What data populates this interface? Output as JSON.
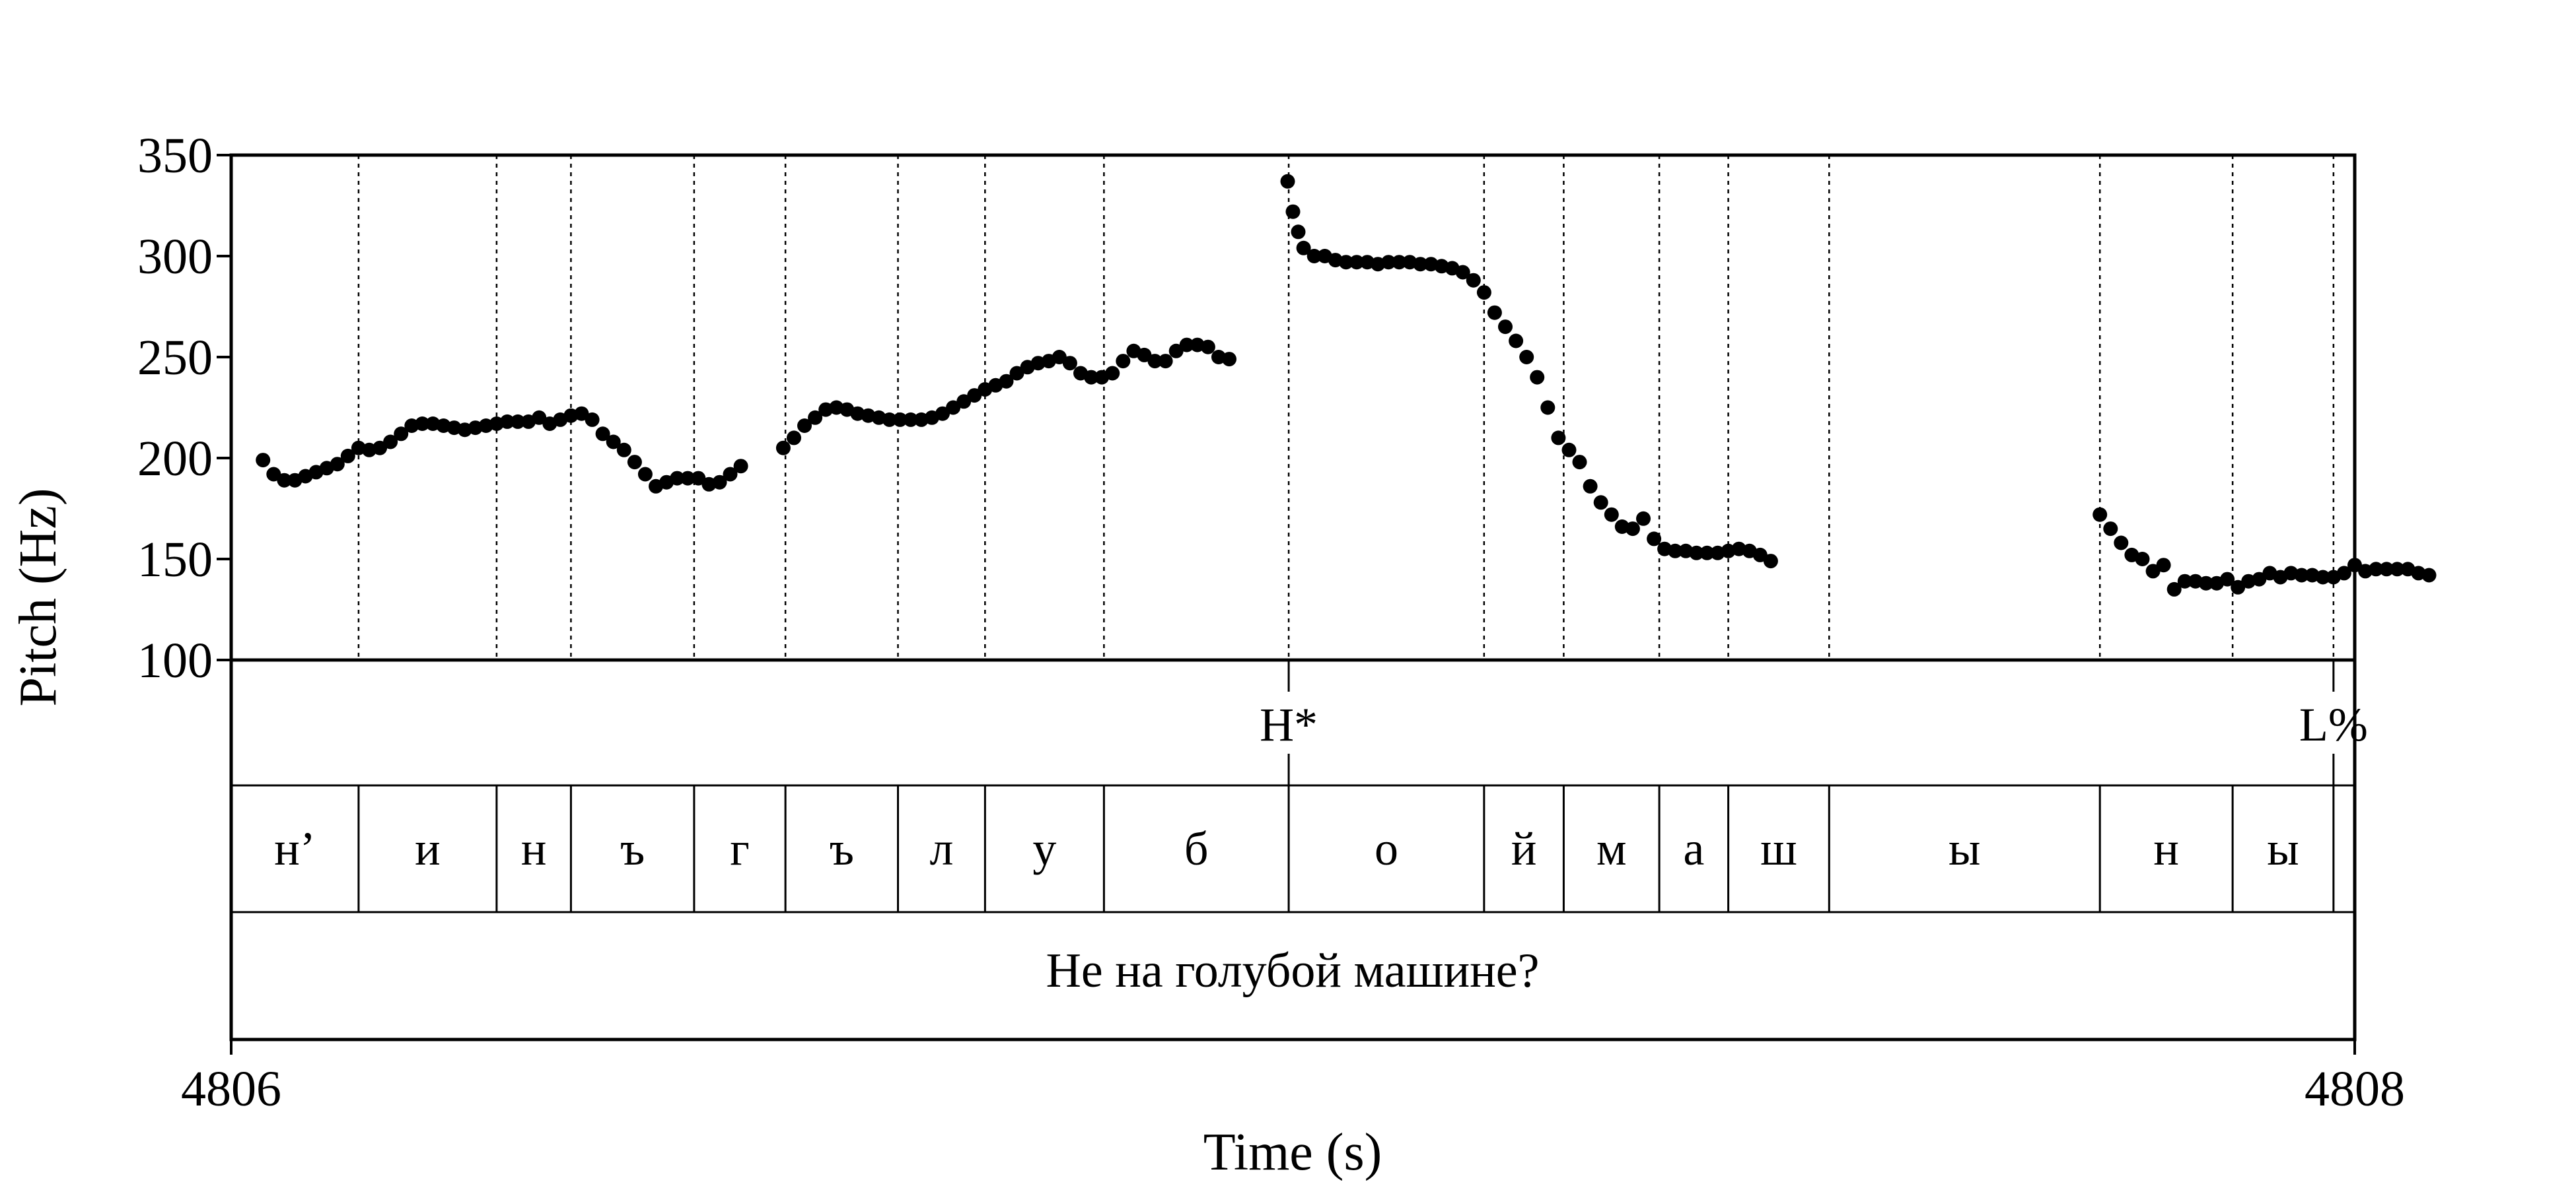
{
  "chart_data": {
    "type": "scatter",
    "xlabel": "Time (s)",
    "ylabel": "Pitch (Hz)",
    "xlim": [
      4806,
      4808
    ],
    "ylim": [
      100,
      350
    ],
    "x_ticks": [
      "4806",
      "4808"
    ],
    "y_ticks": [
      "100",
      "150",
      "200",
      "250",
      "300",
      "350"
    ],
    "marker_color": "#000000",
    "segment_boundaries": [
      4806.12,
      4806.25,
      4806.32,
      4806.436,
      4806.522,
      4806.628,
      4806.71,
      4806.822,
      4806.996,
      4807.18,
      4807.255,
      4807.345,
      4807.41,
      4807.505,
      4807.76,
      4807.885,
      4807.98
    ],
    "tones": [
      {
        "label": "H*",
        "time": 4806.996
      },
      {
        "label": "L%",
        "time": 4807.98
      }
    ],
    "segments": [
      "н’",
      "и",
      "н",
      "ъ",
      "г",
      "ъ",
      "л",
      "у",
      "б",
      "о",
      "й",
      "м",
      "а",
      "ш",
      "ы",
      "н",
      "ы"
    ],
    "sentence": "Не на голубой машине?",
    "series": [
      {
        "points": [
          [
            4806.03,
            199
          ],
          [
            4806.04,
            192
          ],
          [
            4806.05,
            189
          ],
          [
            4806.06,
            189
          ],
          [
            4806.07,
            191
          ],
          [
            4806.08,
            193
          ],
          [
            4806.09,
            195
          ],
          [
            4806.1,
            197
          ],
          [
            4806.11,
            201
          ],
          [
            4806.12,
            205
          ],
          [
            4806.13,
            204
          ],
          [
            4806.14,
            205
          ],
          [
            4806.15,
            208
          ],
          [
            4806.16,
            212
          ],
          [
            4806.17,
            216
          ],
          [
            4806.18,
            217
          ],
          [
            4806.19,
            217
          ],
          [
            4806.2,
            216
          ],
          [
            4806.21,
            215
          ],
          [
            4806.22,
            214
          ],
          [
            4806.23,
            215
          ],
          [
            4806.24,
            216
          ],
          [
            4806.25,
            217
          ],
          [
            4806.26,
            218
          ],
          [
            4806.27,
            218
          ],
          [
            4806.28,
            218
          ],
          [
            4806.29,
            220
          ],
          [
            4806.3,
            217
          ],
          [
            4806.31,
            219
          ],
          [
            4806.32,
            221
          ],
          [
            4806.33,
            222
          ],
          [
            4806.34,
            219
          ],
          [
            4806.35,
            212
          ],
          [
            4806.36,
            208
          ],
          [
            4806.37,
            204
          ],
          [
            4806.38,
            198
          ],
          [
            4806.39,
            192
          ],
          [
            4806.4,
            186
          ],
          [
            4806.41,
            188
          ],
          [
            4806.42,
            190
          ],
          [
            4806.43,
            190
          ],
          [
            4806.44,
            190
          ],
          [
            4806.45,
            187
          ],
          [
            4806.46,
            188
          ],
          [
            4806.47,
            192
          ],
          [
            4806.48,
            196
          ],
          [
            4806.52,
            205
          ],
          [
            4806.53,
            210
          ],
          [
            4806.54,
            216
          ],
          [
            4806.55,
            220
          ],
          [
            4806.56,
            224
          ],
          [
            4806.57,
            225
          ],
          [
            4806.58,
            224
          ],
          [
            4806.59,
            222
          ],
          [
            4806.6,
            221
          ],
          [
            4806.61,
            220
          ],
          [
            4806.62,
            219
          ],
          [
            4806.63,
            219
          ],
          [
            4806.64,
            219
          ],
          [
            4806.65,
            219
          ],
          [
            4806.66,
            220
          ],
          [
            4806.67,
            222
          ],
          [
            4806.68,
            225
          ],
          [
            4806.69,
            228
          ],
          [
            4806.7,
            231
          ],
          [
            4806.71,
            234
          ],
          [
            4806.72,
            236
          ],
          [
            4806.73,
            238
          ],
          [
            4806.74,
            242
          ],
          [
            4806.75,
            245
          ],
          [
            4806.76,
            247
          ],
          [
            4806.77,
            248
          ],
          [
            4806.78,
            250
          ],
          [
            4806.79,
            247
          ],
          [
            4806.8,
            242
          ],
          [
            4806.81,
            240
          ],
          [
            4806.82,
            240
          ],
          [
            4806.83,
            242
          ],
          [
            4806.84,
            248
          ],
          [
            4806.85,
            253
          ],
          [
            4806.86,
            251
          ],
          [
            4806.87,
            248
          ],
          [
            4806.88,
            248
          ],
          [
            4806.89,
            253
          ],
          [
            4806.9,
            256
          ],
          [
            4806.91,
            256
          ],
          [
            4806.92,
            255
          ],
          [
            4806.93,
            250
          ],
          [
            4806.94,
            249
          ],
          [
            4806.995,
            337
          ],
          [
            4807.0,
            322
          ],
          [
            4807.005,
            312
          ],
          [
            4807.01,
            304
          ],
          [
            4807.02,
            300
          ],
          [
            4807.03,
            300
          ],
          [
            4807.04,
            298
          ],
          [
            4807.05,
            297
          ],
          [
            4807.06,
            297
          ],
          [
            4807.07,
            297
          ],
          [
            4807.08,
            296
          ],
          [
            4807.09,
            297
          ],
          [
            4807.1,
            297
          ],
          [
            4807.11,
            297
          ],
          [
            4807.12,
            296
          ],
          [
            4807.13,
            296
          ],
          [
            4807.14,
            295
          ],
          [
            4807.15,
            294
          ],
          [
            4807.16,
            292
          ],
          [
            4807.17,
            288
          ],
          [
            4807.18,
            282
          ],
          [
            4807.19,
            272
          ],
          [
            4807.2,
            265
          ],
          [
            4807.21,
            258
          ],
          [
            4807.22,
            250
          ],
          [
            4807.23,
            240
          ],
          [
            4807.24,
            225
          ],
          [
            4807.25,
            210
          ],
          [
            4807.26,
            204
          ],
          [
            4807.27,
            198
          ],
          [
            4807.28,
            186
          ],
          [
            4807.29,
            178
          ],
          [
            4807.3,
            172
          ],
          [
            4807.31,
            166
          ],
          [
            4807.32,
            165
          ],
          [
            4807.33,
            170
          ],
          [
            4807.34,
            160
          ],
          [
            4807.35,
            155
          ],
          [
            4807.36,
            154
          ],
          [
            4807.37,
            154
          ],
          [
            4807.38,
            153
          ],
          [
            4807.39,
            153
          ],
          [
            4807.4,
            153
          ],
          [
            4807.41,
            154
          ],
          [
            4807.42,
            155
          ],
          [
            4807.43,
            154
          ],
          [
            4807.44,
            152
          ],
          [
            4807.45,
            149
          ],
          [
            4807.76,
            172
          ],
          [
            4807.77,
            165
          ],
          [
            4807.78,
            158
          ],
          [
            4807.79,
            152
          ],
          [
            4807.8,
            150
          ],
          [
            4807.81,
            144
          ],
          [
            4807.82,
            147
          ],
          [
            4807.83,
            135
          ],
          [
            4807.84,
            139
          ],
          [
            4807.85,
            139
          ],
          [
            4807.86,
            138
          ],
          [
            4807.87,
            138
          ],
          [
            4807.88,
            140
          ],
          [
            4807.89,
            136
          ],
          [
            4807.9,
            139
          ],
          [
            4807.91,
            140
          ],
          [
            4807.92,
            143
          ],
          [
            4807.93,
            141
          ],
          [
            4807.94,
            143
          ],
          [
            4807.95,
            142
          ],
          [
            4807.96,
            142
          ],
          [
            4807.97,
            141
          ],
          [
            4807.98,
            141
          ],
          [
            4807.99,
            143
          ],
          [
            4808.0,
            147
          ],
          [
            4808.01,
            144
          ],
          [
            4808.02,
            145
          ],
          [
            4808.03,
            145
          ],
          [
            4808.04,
            145
          ],
          [
            4808.05,
            145
          ],
          [
            4808.06,
            143
          ],
          [
            4808.07,
            142
          ]
        ]
      }
    ]
  }
}
